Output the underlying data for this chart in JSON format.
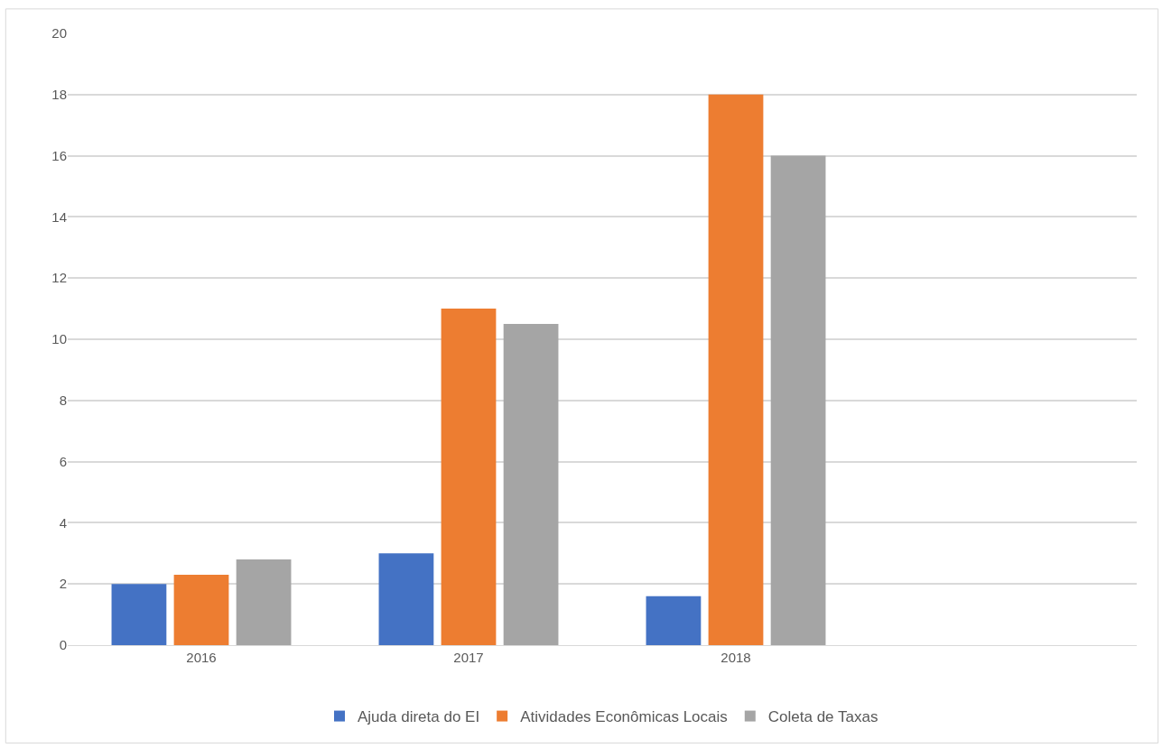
{
  "chart_data": {
    "type": "bar",
    "categories": [
      "2016",
      "2017",
      "2018",
      null
    ],
    "series": [
      {
        "name": "Ajuda direta do EI",
        "color": "#4472c4",
        "values": [
          2.0,
          3.0,
          1.6,
          null
        ]
      },
      {
        "name": "Atividades Econômicas Locais",
        "color": "#ed7d31",
        "values": [
          2.3,
          11.0,
          18.0,
          null
        ]
      },
      {
        "name": "Coleta de Taxas",
        "color": "#a5a5a5",
        "values": [
          2.8,
          10.5,
          16.0,
          null
        ]
      }
    ],
    "ylim": [
      0,
      20
    ],
    "yticks": [
      0,
      2,
      4,
      6,
      8,
      10,
      12,
      14,
      16,
      18,
      20
    ],
    "grid": "y",
    "legend": "bottom"
  }
}
